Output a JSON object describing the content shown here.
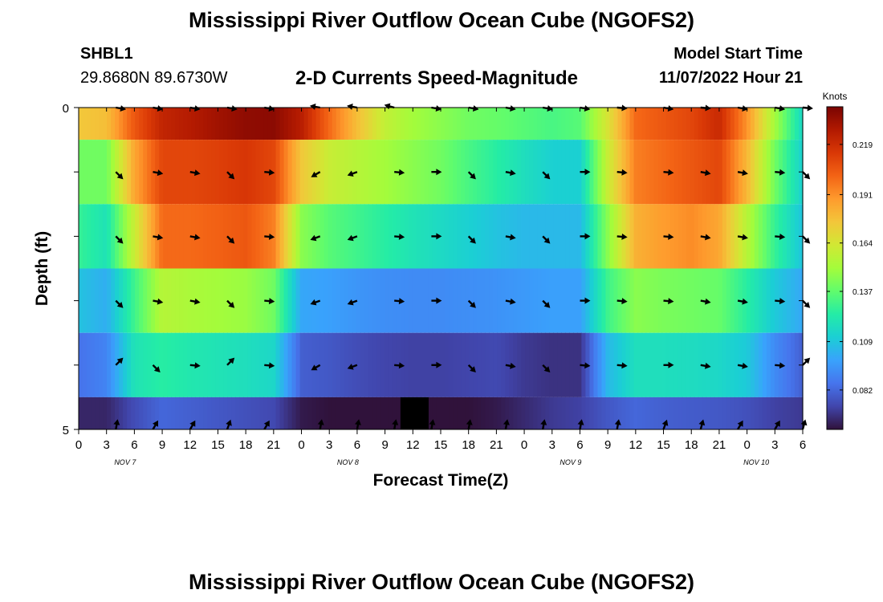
{
  "page": {
    "title": "Mississippi River Outflow Ocean Cube (NGOFS2)",
    "title_repeat": "Mississippi River Outflow Ocean Cube (NGOFS2)",
    "station_id": "SHBL1",
    "station_coords": "29.8680N  89.6730W",
    "subtitle": "2-D Currents Speed-Magnitude",
    "start_label": "Model Start Time",
    "start_value": "11/07/2022 Hour 21"
  },
  "chart_data": {
    "type": "heatmap",
    "title": "2-D Currents Speed-Magnitude",
    "xlabel": "Forecast Time(Z)",
    "ylabel": "Depth (ft)",
    "colorbar_label": "Knots",
    "colorbar_ticks": [
      0.082,
      0.109,
      0.137,
      0.164,
      0.191,
      0.219
    ],
    "color_range": [
      0.06,
      0.24
    ],
    "colormap": [
      "#30123b",
      "#4145ab",
      "#4675ed",
      "#39a2fc",
      "#1bcfd4",
      "#24eca6",
      "#61fc6c",
      "#a4fc3b",
      "#d1e834",
      "#f3c63a",
      "#fe9b2d",
      "#f36315",
      "#d93806",
      "#b11901",
      "#7a0402"
    ],
    "missing_color": "#000000",
    "x_ticks": [
      "0",
      "3",
      "6",
      "9",
      "12",
      "15",
      "18",
      "21",
      "0",
      "3",
      "6",
      "9",
      "12",
      "15",
      "18",
      "21",
      "0",
      "3",
      "6",
      "9",
      "12",
      "15",
      "18",
      "21",
      "0",
      "3",
      "6"
    ],
    "x_hours_total": 78,
    "day_labels": [
      {
        "label": "NOV 7",
        "hour": 5
      },
      {
        "label": "NOV 8",
        "hour": 29
      },
      {
        "label": "NOV 9",
        "hour": 53
      },
      {
        "label": "NOV 10",
        "hour": 73
      }
    ],
    "y_ticks": [
      "0",
      "5"
    ],
    "ylim": [
      0,
      5
    ],
    "layer_top_depths": [
      0,
      0.5,
      1.5,
      2.5,
      3.5,
      4.5
    ],
    "time_hours": [
      0,
      3,
      6,
      9,
      12,
      15,
      18,
      21,
      24,
      27,
      30,
      33,
      36,
      39,
      42,
      45,
      48,
      51,
      54,
      57,
      60,
      63,
      66,
      69,
      72,
      75,
      78
    ],
    "speed": [
      [
        0.175,
        0.178,
        0.205,
        0.222,
        0.226,
        0.231,
        0.235,
        0.236,
        0.225,
        0.2,
        0.178,
        0.158,
        0.15,
        0.145,
        0.14,
        0.138,
        0.135,
        0.132,
        0.135,
        0.165,
        0.2,
        0.205,
        0.21,
        0.22,
        0.19,
        0.15,
        0.115
      ],
      [
        0.14,
        0.14,
        0.185,
        0.21,
        0.21,
        0.212,
        0.215,
        0.21,
        0.175,
        0.16,
        0.155,
        0.15,
        0.145,
        0.14,
        0.132,
        0.125,
        0.118,
        0.112,
        0.112,
        0.16,
        0.195,
        0.2,
        0.205,
        0.21,
        0.18,
        0.14,
        0.112
      ],
      [
        0.128,
        0.12,
        0.16,
        0.2,
        0.2,
        0.202,
        0.205,
        0.195,
        0.145,
        0.135,
        0.13,
        0.125,
        0.12,
        0.116,
        0.112,
        0.108,
        0.105,
        0.105,
        0.105,
        0.145,
        0.182,
        0.188,
        0.192,
        0.185,
        0.155,
        0.128,
        0.108
      ],
      [
        0.108,
        0.102,
        0.13,
        0.155,
        0.152,
        0.15,
        0.148,
        0.14,
        0.1,
        0.098,
        0.095,
        0.093,
        0.092,
        0.092,
        0.093,
        0.094,
        0.096,
        0.098,
        0.098,
        0.13,
        0.145,
        0.142,
        0.14,
        0.138,
        0.125,
        0.11,
        0.1
      ],
      [
        0.085,
        0.09,
        0.12,
        0.125,
        0.122,
        0.12,
        0.118,
        0.115,
        0.08,
        0.078,
        0.075,
        0.073,
        0.072,
        0.072,
        0.073,
        0.074,
        0.07,
        0.068,
        0.068,
        0.105,
        0.118,
        0.118,
        0.117,
        0.115,
        0.11,
        0.092,
        0.08
      ],
      [
        0.065,
        0.065,
        0.075,
        0.082,
        0.08,
        0.078,
        0.076,
        0.074,
        0.062,
        0.06,
        0.058,
        0.058,
        null,
        0.058,
        0.06,
        0.062,
        0.066,
        0.07,
        0.072,
        0.078,
        0.082,
        0.08,
        0.079,
        0.078,
        0.076,
        0.072,
        0.07
      ]
    ],
    "arrow_hours": [
      4,
      8,
      12,
      16,
      20,
      26,
      30,
      34,
      38,
      42,
      46,
      50,
      54,
      58,
      63,
      67,
      71,
      75,
      78
    ],
    "arrow_depths": [
      0,
      1,
      2,
      3,
      4,
      5
    ],
    "arrow_direction_deg": [
      [
        100,
        100,
        100,
        100,
        100,
        280,
        280,
        285,
        100,
        100,
        100,
        100,
        100,
        95,
        100,
        95,
        100,
        100,
        95
      ],
      [
        135,
        100,
        100,
        135,
        95,
        240,
        250,
        95,
        90,
        135,
        100,
        135,
        90,
        95,
        95,
        100,
        100,
        95,
        135
      ],
      [
        135,
        100,
        100,
        135,
        95,
        250,
        250,
        95,
        90,
        135,
        100,
        135,
        90,
        95,
        95,
        100,
        100,
        95,
        135
      ],
      [
        135,
        100,
        100,
        135,
        95,
        250,
        250,
        95,
        90,
        135,
        100,
        135,
        90,
        95,
        95,
        100,
        100,
        95,
        135
      ],
      [
        45,
        135,
        95,
        45,
        95,
        240,
        250,
        95,
        90,
        135,
        100,
        135,
        95,
        95,
        90,
        100,
        100,
        95,
        45
      ],
      [
        10,
        30,
        30,
        20,
        30,
        10,
        10,
        10,
        10,
        10,
        10,
        10,
        10,
        10,
        20,
        15,
        30,
        30,
        15
      ]
    ]
  }
}
